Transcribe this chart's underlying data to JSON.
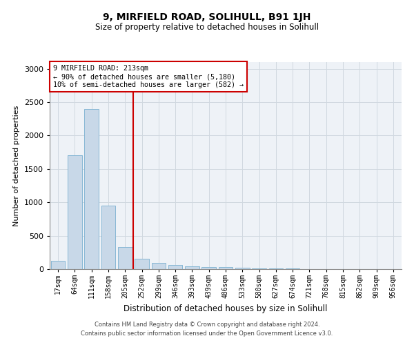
{
  "title": "9, MIRFIELD ROAD, SOLIHULL, B91 1JH",
  "subtitle": "Size of property relative to detached houses in Solihull",
  "xlabel": "Distribution of detached houses by size in Solihull",
  "ylabel": "Number of detached properties",
  "bar_labels": [
    "17sqm",
    "64sqm",
    "111sqm",
    "158sqm",
    "205sqm",
    "252sqm",
    "299sqm",
    "346sqm",
    "393sqm",
    "439sqm",
    "486sqm",
    "533sqm",
    "580sqm",
    "627sqm",
    "674sqm",
    "721sqm",
    "768sqm",
    "815sqm",
    "862sqm",
    "909sqm",
    "956sqm"
  ],
  "bar_values": [
    120,
    1700,
    2400,
    950,
    330,
    150,
    90,
    60,
    40,
    35,
    30,
    20,
    15,
    10,
    8,
    5,
    4,
    3,
    2,
    2,
    1
  ],
  "bar_color": "#c8d8e8",
  "bar_edge_color": "#7ab0d0",
  "property_line_x": 4.5,
  "property_line_color": "#cc0000",
  "annotation_title": "9 MIRFIELD ROAD: 213sqm",
  "annotation_line1": "← 90% of detached houses are smaller (5,180)",
  "annotation_line2": "10% of semi-detached houses are larger (582) →",
  "annotation_box_color": "#cc0000",
  "ylim": [
    0,
    3100
  ],
  "yticks": [
    0,
    500,
    1000,
    1500,
    2000,
    2500,
    3000
  ],
  "grid_color": "#d0d8e0",
  "bg_color": "#eef2f7",
  "footer1": "Contains HM Land Registry data © Crown copyright and database right 2024.",
  "footer2": "Contains public sector information licensed under the Open Government Licence v3.0."
}
